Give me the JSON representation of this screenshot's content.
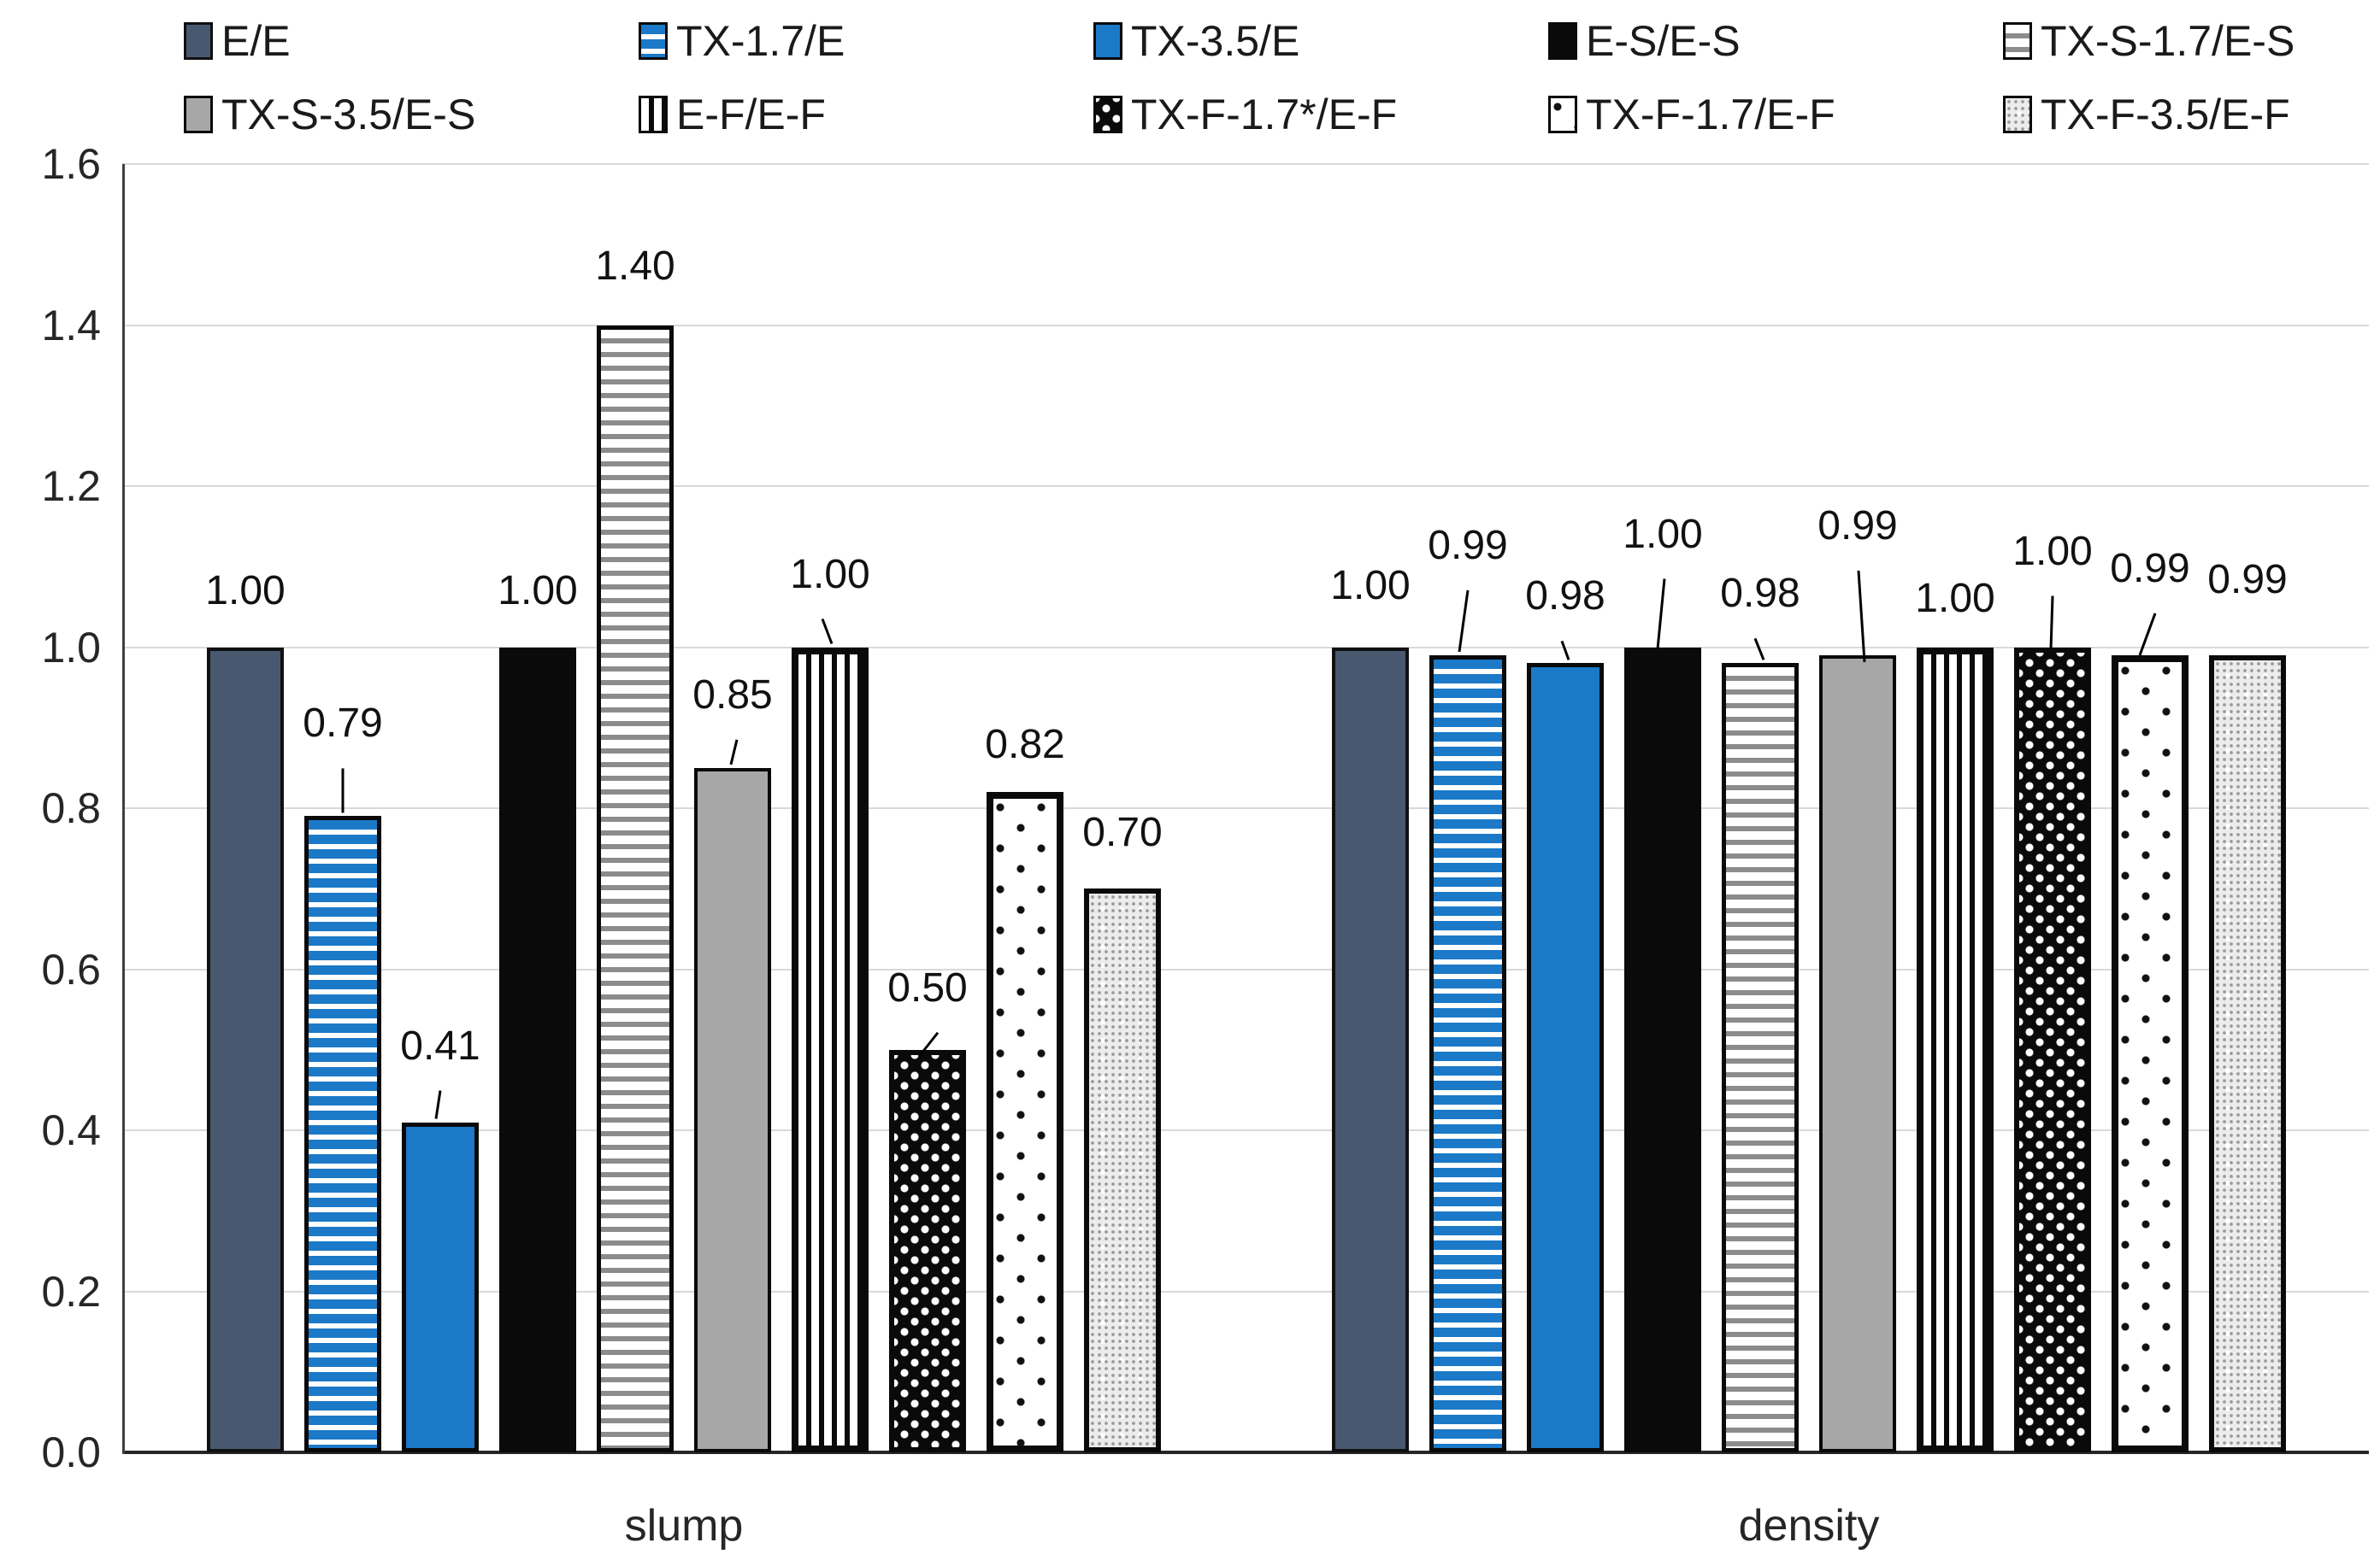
{
  "chart_data": {
    "type": "bar",
    "title": "",
    "xlabel": "",
    "ylabel": "",
    "categories": [
      "slump",
      "density"
    ],
    "ylim": [
      0.0,
      1.6
    ],
    "ytick_labels": [
      "0.0",
      "0.2",
      "0.4",
      "0.6",
      "0.8",
      "1.0",
      "1.2",
      "1.4",
      "1.6"
    ],
    "grid": true,
    "legend_position": "top",
    "series": [
      {
        "name": "E/E",
        "pattern": "slate",
        "values": [
          1.0,
          1.0
        ],
        "value_labels": [
          "1.00",
          "1.00"
        ],
        "callouts": [
          {
            "dy": 40
          },
          {
            "dy": 46
          }
        ]
      },
      {
        "name": "TX-1.7/E",
        "pattern": "blue-stripes",
        "values": [
          0.79,
          0.99
        ],
        "value_labels": [
          "0.79",
          "0.99"
        ],
        "callouts": [
          {
            "dy": 82,
            "line": [
              0,
              0,
              0
            ]
          },
          {
            "dy": 102,
            "line": [
              0,
              -10,
              0
            ]
          }
        ]
      },
      {
        "name": "TX-3.5/E",
        "pattern": "blue",
        "values": [
          0.41,
          0.98
        ],
        "value_labels": [
          "0.41",
          "0.98"
        ],
        "callouts": [
          {
            "dy": 63,
            "line": [
              0,
              -5,
              0
            ]
          },
          {
            "dy": 52,
            "line": [
              -4,
              4,
              0
            ]
          }
        ]
      },
      {
        "name": "E-S/E-S",
        "pattern": "black",
        "values": [
          1.0,
          1.0
        ],
        "value_labels": [
          "1.00",
          "1.00"
        ],
        "callouts": [
          {
            "dy": 40
          },
          {
            "dy": 106,
            "line": [
              2,
              -6,
              6
            ]
          }
        ]
      },
      {
        "name": "TX-S-1.7/E-S",
        "pattern": "gray-stripes",
        "values": [
          1.4,
          0.98
        ],
        "value_labels": [
          "1.40",
          "0.98"
        ],
        "callouts": [
          {
            "dy": 43
          },
          {
            "dy": 55,
            "line": [
              -6,
              4,
              0
            ]
          }
        ]
      },
      {
        "name": "TX-S-3.5/E-S",
        "pattern": "gray",
        "values": [
          0.85,
          0.99
        ],
        "value_labels": [
          "0.85",
          "0.99"
        ],
        "callouts": [
          {
            "dy": 59,
            "line": [
              5,
              -2,
              0
            ]
          },
          {
            "dy": 125,
            "line": [
              1,
              8,
              12
            ]
          }
        ]
      },
      {
        "name": "E-F/E-F",
        "pattern": "vert-stripes",
        "values": [
          1.0,
          1.0
        ],
        "value_labels": [
          "1.00",
          "1.00"
        ],
        "callouts": [
          {
            "dy": 59,
            "line": [
              -9,
              2,
              0
            ]
          },
          {
            "dy": 31
          }
        ]
      },
      {
        "name": "TX-F-1.7*/E-F",
        "pattern": "black-dots",
        "values": [
          0.5,
          1.0
        ],
        "value_labels": [
          "0.50",
          "1.00"
        ],
        "callouts": [
          {
            "dy": 46,
            "line": [
              12,
              -10,
              12
            ]
          },
          {
            "dy": 86,
            "line": [
              0,
              -2,
              6
            ]
          }
        ]
      },
      {
        "name": "TX-F-1.7/E-F",
        "pattern": "white-dots",
        "values": [
          0.82,
          0.99
        ],
        "value_labels": [
          "0.82",
          "0.99"
        ],
        "callouts": [
          {
            "dy": 29
          },
          {
            "dy": 75,
            "line": [
              6,
              -12,
              4
            ]
          }
        ]
      },
      {
        "name": "TX-F-3.5/E-F",
        "pattern": "light-dots",
        "values": [
          0.7,
          0.99
        ],
        "value_labels": [
          "0.70",
          "0.99"
        ],
        "callouts": [
          {
            "dy": 39
          },
          {
            "dy": 62
          }
        ]
      }
    ]
  },
  "colors": {
    "slate": "#48596F",
    "blue": "#1B79C7",
    "gray": "#A7A7A7",
    "black": "#0a0a0a",
    "gridline": "#d9d9d9",
    "axis": "#262626"
  }
}
